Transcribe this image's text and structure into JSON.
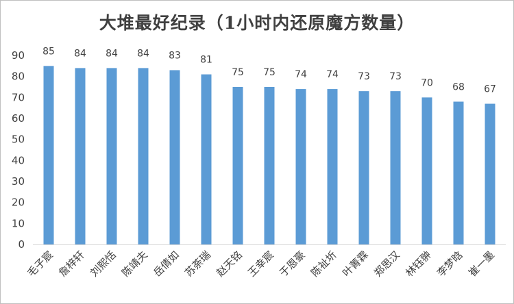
{
  "chart_data": {
    "type": "bar",
    "title": "大堆最好纪录（1小时内还原魔方数量）",
    "categories": [
      "毛子宸",
      "詹梓轩",
      "刘熙恬",
      "陈靖夫",
      "岳倩如",
      "苏荼瑞",
      "赵天铭",
      "王幸宸",
      "于恩豪",
      "陈祉圻",
      "叶菁霖",
      "郑思汉",
      "林钰翀",
      "李梦晗",
      "崔一墨"
    ],
    "values": [
      85,
      84,
      84,
      84,
      83,
      81,
      75,
      75,
      74,
      74,
      73,
      73,
      70,
      68,
      67
    ],
    "ylim": [
      0,
      90
    ],
    "yticks": [
      0,
      10,
      20,
      30,
      40,
      50,
      60,
      70,
      80,
      90
    ],
    "grid": false,
    "legend": "none",
    "bar_color": "#5b9bd5",
    "axis_color": "#d9d9d9"
  }
}
